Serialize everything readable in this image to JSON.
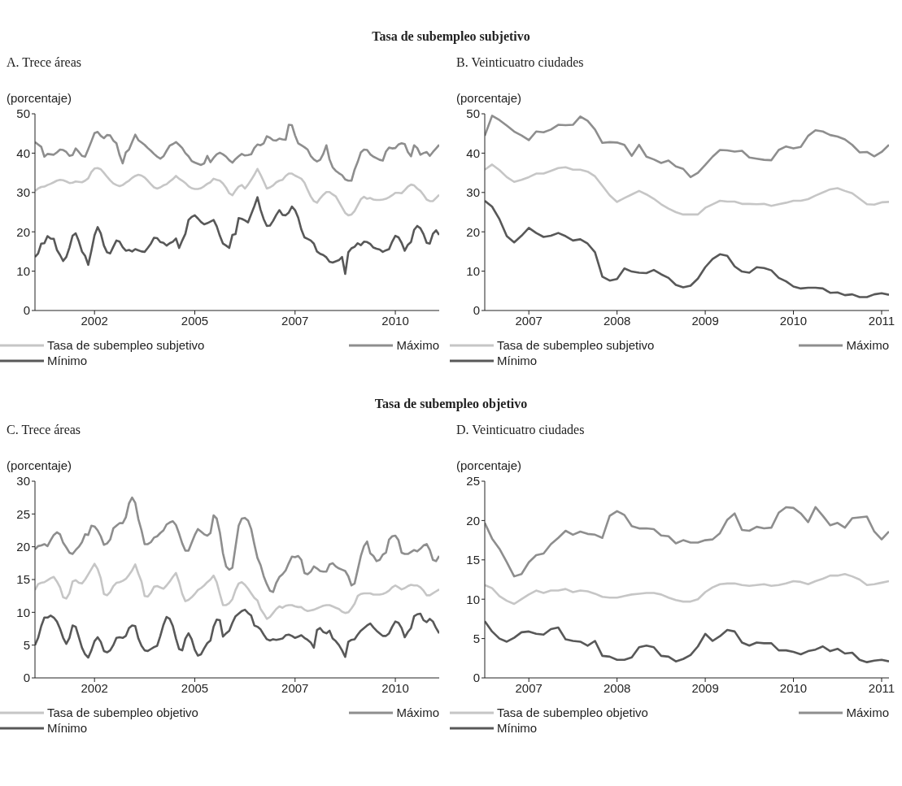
{
  "chart_data": [
    {
      "type": "line",
      "title": "Tasa de subempleo subjetivo",
      "subtitle": "A. Trece áreas",
      "ylabel": "(porcentaje)",
      "ylim": [
        0,
        50
      ],
      "yticks": [
        0,
        10,
        20,
        30,
        40,
        50
      ],
      "legend": "bottom",
      "marker": "none",
      "grid": false,
      "categories": [
        null,
        null,
        null,
        null,
        null,
        null,
        null,
        null,
        null,
        null,
        null,
        null,
        null,
        null,
        null,
        null,
        null,
        null,
        null,
        "2002",
        null,
        null,
        null,
        null,
        null,
        null,
        null,
        null,
        null,
        null,
        null,
        null,
        null,
        null,
        null,
        null,
        null,
        null,
        null,
        null,
        null,
        null,
        null,
        null,
        null,
        null,
        null,
        null,
        null,
        null,
        null,
        "2005",
        null,
        null,
        null,
        null,
        null,
        null,
        null,
        null,
        null,
        null,
        null,
        null,
        null,
        null,
        null,
        null,
        null,
        null,
        null,
        null,
        null,
        null,
        null,
        null,
        null,
        null,
        null,
        null,
        null,
        null,
        null,
        "2007",
        null,
        null,
        null,
        null,
        null,
        null,
        null,
        null,
        null,
        null,
        null,
        null,
        null,
        null,
        null,
        null,
        null,
        null,
        null,
        null,
        null,
        null,
        null,
        null,
        null,
        null,
        null,
        null,
        null,
        null,
        null,
        "2010",
        null,
        null,
        null,
        null,
        null,
        null,
        null,
        null,
        null,
        null,
        null,
        null,
        null,
        null
      ],
      "series": [
        {
          "name": "Tasa de subempleo subjetivo",
          "color": "#c6c6c6",
          "values": [
            30.4,
            31.0,
            31.4,
            31.5,
            31.9,
            32.2,
            32.6,
            33.0,
            33.2,
            33.1,
            32.8,
            32.4,
            32.5,
            32.8,
            32.7,
            32.6,
            33.0,
            33.6,
            35.2,
            36.1,
            36.2,
            35.9,
            35.0,
            34.0,
            33.1,
            32.3,
            31.9,
            31.6,
            31.9,
            32.5,
            33.0,
            33.7,
            34.2,
            34.5,
            34.3,
            33.8,
            33.0,
            32.1,
            31.3,
            31.0,
            31.3,
            31.8,
            32.1,
            32.8,
            33.4,
            34.2,
            33.5,
            33.0,
            32.4,
            31.6,
            31.1,
            30.9,
            30.9,
            31.1,
            31.6,
            32.2,
            32.6,
            33.5,
            33.2,
            33.0,
            32.3,
            31.2,
            29.8,
            29.3,
            30.5,
            31.5,
            31.9,
            31.0,
            32.0,
            33.2,
            34.5,
            36.0,
            34.5,
            32.8,
            31.0,
            31.3,
            31.8,
            32.6,
            33.0,
            33.2,
            34.2,
            34.8,
            34.8,
            34.3,
            33.9,
            33.5,
            32.5,
            30.7,
            29.0,
            27.8,
            27.4,
            28.5,
            29.4,
            30.1,
            30.1,
            29.5,
            29.0,
            27.6,
            26.2,
            24.8,
            24.2,
            24.4,
            25.3,
            26.8,
            28.3,
            28.9,
            28.4,
            28.6,
            28.2,
            28.1,
            28.1,
            28.2,
            28.4,
            28.8,
            29.3,
            29.9,
            29.9,
            29.8,
            30.6,
            31.5,
            32.0,
            31.8,
            31.0,
            30.4,
            29.4,
            28.2,
            27.8,
            27.8,
            28.6,
            29.4
          ]
        },
        {
          "name": "Máximo",
          "color": "#8e8e8e",
          "values": [
            42.8,
            42.2,
            41.6,
            39.1,
            39.8,
            39.7,
            39.6,
            40.2,
            40.9,
            40.8,
            40.3,
            39.3,
            39.5,
            41.2,
            40.3,
            39.3,
            39.1,
            41.0,
            43.0,
            45.1,
            45.4,
            44.4,
            43.8,
            44.6,
            44.5,
            43.2,
            42.5,
            39.5,
            37.4,
            40.2,
            40.9,
            42.8,
            44.7,
            43.3,
            42.7,
            42.1,
            41.3,
            40.6,
            39.8,
            39.1,
            38.6,
            39.2,
            40.6,
            41.9,
            42.3,
            42.8,
            42.1,
            41.3,
            40.0,
            39.2,
            38.0,
            37.6,
            37.3,
            37.0,
            37.4,
            39.3,
            37.7,
            38.8,
            39.7,
            40.1,
            39.7,
            39.1,
            38.2,
            37.6,
            38.5,
            39.2,
            39.8,
            39.4,
            39.5,
            39.7,
            41.3,
            42.2,
            42.0,
            42.5,
            44.3,
            43.9,
            43.3,
            43.2,
            43.7,
            43.5,
            43.4,
            47.2,
            47.1,
            44.5,
            42.5,
            42.0,
            41.5,
            40.9,
            39.3,
            38.4,
            37.9,
            38.3,
            39.8,
            42.0,
            38.4,
            36.4,
            35.5,
            34.9,
            34.4,
            33.3,
            33.0,
            33.0,
            35.8,
            37.8,
            40.2,
            40.9,
            40.8,
            39.7,
            39.1,
            38.7,
            38.3,
            38.1,
            40.4,
            41.4,
            41.2,
            41.3,
            42.2,
            42.5,
            42.3,
            40.3,
            39.2,
            42.0,
            41.3,
            39.6,
            40.0,
            40.3,
            39.3,
            40.3,
            41.2,
            42.1
          ]
        },
        {
          "name": "Mínimo",
          "color": "#585858",
          "values": [
            13.6,
            14.5,
            17.0,
            17.1,
            18.9,
            18.3,
            18.2,
            15.4,
            14.1,
            12.6,
            13.6,
            16.0,
            19.0,
            19.6,
            17.6,
            15.0,
            13.9,
            11.6,
            15.2,
            19.1,
            21.2,
            19.6,
            16.5,
            14.8,
            14.5,
            16.2,
            17.8,
            17.5,
            16.1,
            15.2,
            15.4,
            15.0,
            15.6,
            15.3,
            15.0,
            14.9,
            15.9,
            17.0,
            18.5,
            18.4,
            17.4,
            17.2,
            16.5,
            17.1,
            17.5,
            18.3,
            15.9,
            17.8,
            19.5,
            23.0,
            23.8,
            24.2,
            23.4,
            22.5,
            21.9,
            22.2,
            22.6,
            23.0,
            21.4,
            19.0,
            17.0,
            16.5,
            15.9,
            19.2,
            19.4,
            23.5,
            23.3,
            22.9,
            22.4,
            24.5,
            26.5,
            28.8,
            25.6,
            23.2,
            21.5,
            21.6,
            22.8,
            24.3,
            25.5,
            24.3,
            24.2,
            24.9,
            26.4,
            25.5,
            23.6,
            20.6,
            18.6,
            18.2,
            17.8,
            17.0,
            15.0,
            14.4,
            14.1,
            13.5,
            12.4,
            12.2,
            12.5,
            12.8,
            13.6,
            9.3,
            14.8,
            15.8,
            16.2,
            17.1,
            16.6,
            17.5,
            17.4,
            16.9,
            16.0,
            15.7,
            15.5,
            14.9,
            15.3,
            15.6,
            17.5,
            19.0,
            18.6,
            17.2,
            15.2,
            16.7,
            17.4,
            20.5,
            21.5,
            20.9,
            19.4,
            17.2,
            17.0,
            19.5,
            20.4,
            19.2
          ]
        }
      ]
    },
    {
      "type": "line",
      "subtitle": "B. Veinticuatro ciudades",
      "ylabel": "(porcentaje)",
      "ylim": [
        0,
        50
      ],
      "yticks": [
        0,
        10,
        20,
        30,
        40,
        50
      ],
      "legend": "bottom",
      "marker": "none",
      "grid": false,
      "categories": [
        null,
        null,
        null,
        null,
        null,
        null,
        "2007",
        null,
        null,
        null,
        null,
        null,
        null,
        null,
        null,
        null,
        null,
        null,
        "2008",
        null,
        null,
        null,
        null,
        null,
        null,
        null,
        null,
        null,
        null,
        null,
        "2009",
        null,
        null,
        null,
        null,
        null,
        null,
        null,
        null,
        null,
        null,
        null,
        "2010",
        null,
        null,
        null,
        null,
        null,
        null,
        null,
        null,
        null,
        null,
        null,
        "2011",
        null
      ],
      "series": [
        {
          "name": "Tasa de subempleo subjetivo",
          "color": "#c6c6c6",
          "values": [
            35.8,
            37.1,
            35.7,
            33.9,
            32.7,
            33.2,
            33.9,
            34.8,
            34.8,
            35.5,
            36.2,
            36.4,
            35.8,
            35.8,
            35.3,
            34.1,
            31.7,
            29.3,
            27.6,
            28.6,
            29.5,
            30.4,
            29.5,
            28.4,
            27.0,
            25.9,
            25.0,
            24.4,
            24.4,
            24.4,
            26.1,
            27.0,
            27.9,
            27.7,
            27.7,
            27.1,
            27.1,
            27.0,
            27.1,
            26.6,
            27.0,
            27.4,
            27.9,
            27.9,
            28.3,
            29.2,
            30.0,
            30.8,
            31.1,
            30.4,
            29.8,
            28.4,
            27.0,
            26.9,
            27.5,
            27.6
          ]
        },
        {
          "name": "Máximo",
          "color": "#8e8e8e",
          "values": [
            44.4,
            49.5,
            48.4,
            47.0,
            45.5,
            44.5,
            43.3,
            45.5,
            45.3,
            46.0,
            47.2,
            47.1,
            47.2,
            49.3,
            48.2,
            46.0,
            42.6,
            42.8,
            42.7,
            42.1,
            39.3,
            42.1,
            39.1,
            38.4,
            37.5,
            38.1,
            36.6,
            36.0,
            33.9,
            35.0,
            37.0,
            39.1,
            40.8,
            40.7,
            40.4,
            40.6,
            38.9,
            38.6,
            38.3,
            38.2,
            40.8,
            41.7,
            41.2,
            41.6,
            44.4,
            45.8,
            45.5,
            44.6,
            44.2,
            43.5,
            42.1,
            40.2,
            40.3,
            39.2,
            40.3,
            42.1
          ]
        },
        {
          "name": "Mínimo",
          "color": "#585858",
          "values": [
            27.9,
            26.4,
            23.2,
            18.9,
            17.3,
            19.0,
            21.0,
            19.7,
            18.7,
            19.0,
            19.7,
            18.9,
            17.8,
            18.1,
            17.0,
            14.8,
            8.6,
            7.6,
            8.0,
            10.7,
            9.9,
            9.6,
            9.5,
            10.3,
            9.2,
            8.3,
            6.5,
            5.9,
            6.3,
            8.1,
            11.0,
            13.1,
            14.3,
            13.9,
            11.2,
            9.9,
            9.6,
            11.0,
            10.8,
            10.2,
            8.3,
            7.4,
            6.1,
            5.6,
            5.8,
            5.8,
            5.6,
            4.5,
            4.6,
            3.9,
            4.1,
            3.4,
            3.4,
            4.1,
            4.4,
            4.0
          ]
        }
      ]
    },
    {
      "type": "line",
      "title": "Tasa de subempleo objetivo",
      "subtitle": "C. Trece áreas",
      "ylabel": "(porcentaje)",
      "ylim": [
        0,
        30
      ],
      "yticks": [
        0,
        5,
        10,
        15,
        20,
        25,
        30
      ],
      "legend": "bottom",
      "marker": "none",
      "grid": false,
      "categories": [
        null,
        null,
        null,
        null,
        null,
        null,
        null,
        null,
        null,
        null,
        null,
        null,
        null,
        null,
        null,
        null,
        null,
        null,
        null,
        "2002",
        null,
        null,
        null,
        null,
        null,
        null,
        null,
        null,
        null,
        null,
        null,
        null,
        null,
        null,
        null,
        null,
        null,
        null,
        null,
        null,
        null,
        null,
        null,
        null,
        null,
        null,
        null,
        null,
        null,
        null,
        null,
        "2005",
        null,
        null,
        null,
        null,
        null,
        null,
        null,
        null,
        null,
        null,
        null,
        null,
        null,
        null,
        null,
        null,
        null,
        null,
        null,
        null,
        null,
        null,
        null,
        null,
        null,
        null,
        null,
        null,
        null,
        null,
        null,
        "2007",
        null,
        null,
        null,
        null,
        null,
        null,
        null,
        null,
        null,
        null,
        null,
        null,
        null,
        null,
        null,
        null,
        null,
        null,
        null,
        null,
        null,
        null,
        null,
        null,
        null,
        null,
        null,
        null,
        null,
        null,
        null,
        "2010",
        null,
        null,
        null,
        null,
        null,
        null,
        null,
        null,
        null,
        null,
        null,
        null,
        null,
        null
      ],
      "series": [
        {
          "name": "Tasa de subempleo objetivo",
          "color": "#c6c6c6",
          "values": [
            13.4,
            14.3,
            14.5,
            14.6,
            14.9,
            15.2,
            15.4,
            14.7,
            13.8,
            12.3,
            12.1,
            12.9,
            14.7,
            14.9,
            14.5,
            14.4,
            15.0,
            15.8,
            16.6,
            17.4,
            16.6,
            15.2,
            12.8,
            12.6,
            13.1,
            14.0,
            14.5,
            14.6,
            14.8,
            15.1,
            15.7,
            16.4,
            17.3,
            15.9,
            14.7,
            12.5,
            12.4,
            13.0,
            13.9,
            14.0,
            13.8,
            13.6,
            14.1,
            14.7,
            15.4,
            16.0,
            14.6,
            12.8,
            11.7,
            11.9,
            12.3,
            12.8,
            13.4,
            13.7,
            14.1,
            14.6,
            15.0,
            15.6,
            14.6,
            12.8,
            11.1,
            11.1,
            11.4,
            12.0,
            13.4,
            14.4,
            14.6,
            14.2,
            13.6,
            12.9,
            12.2,
            11.8,
            10.5,
            9.8,
            9.0,
            9.3,
            9.9,
            10.5,
            10.9,
            10.7,
            11.0,
            11.1,
            11.1,
            10.9,
            10.8,
            10.8,
            10.4,
            10.2,
            10.3,
            10.4,
            10.6,
            10.8,
            11.0,
            11.1,
            11.1,
            10.9,
            10.7,
            10.5,
            10.1,
            9.9,
            10.0,
            10.6,
            11.3,
            12.5,
            12.8,
            12.9,
            12.9,
            12.9,
            12.7,
            12.7,
            12.7,
            12.8,
            13.0,
            13.3,
            13.8,
            14.1,
            13.8,
            13.5,
            13.7,
            14.0,
            14.2,
            14.1,
            14.1,
            13.8,
            13.3,
            12.6,
            12.6,
            12.9,
            13.2,
            13.5
          ]
        },
        {
          "name": "Máximo",
          "color": "#8e8e8e",
          "values": [
            19.6,
            20.1,
            20.2,
            20.4,
            20.1,
            21.0,
            21.8,
            22.2,
            21.9,
            20.6,
            19.9,
            19.1,
            18.9,
            19.5,
            20.0,
            20.7,
            21.9,
            21.8,
            23.2,
            23.1,
            22.5,
            21.6,
            20.3,
            20.5,
            21.1,
            22.8,
            23.2,
            23.6,
            23.6,
            24.5,
            26.6,
            27.5,
            26.7,
            24.2,
            22.5,
            20.4,
            20.4,
            20.7,
            21.4,
            21.6,
            22.1,
            22.5,
            23.4,
            23.7,
            23.9,
            23.3,
            22.0,
            20.5,
            19.4,
            19.4,
            20.6,
            21.8,
            22.7,
            22.3,
            21.9,
            21.7,
            22.1,
            24.8,
            24.3,
            22.2,
            19.0,
            17.0,
            16.5,
            16.8,
            20.0,
            23.2,
            24.3,
            24.4,
            24.0,
            22.7,
            20.4,
            18.3,
            17.2,
            15.5,
            14.3,
            13.3,
            13.1,
            14.5,
            15.4,
            15.8,
            16.4,
            17.5,
            18.5,
            18.4,
            18.6,
            18.0,
            16.0,
            15.8,
            16.2,
            17.0,
            16.7,
            16.3,
            16.2,
            16.2,
            17.3,
            17.5,
            17.0,
            16.7,
            16.5,
            16.3,
            15.5,
            14.1,
            14.4,
            16.5,
            18.6,
            20.1,
            20.8,
            19.0,
            18.6,
            17.8,
            18.0,
            18.8,
            19.1,
            21.1,
            21.6,
            21.7,
            21.0,
            19.1,
            18.9,
            18.9,
            19.2,
            19.5,
            19.3,
            19.7,
            20.2,
            20.4,
            19.5,
            18.0,
            17.8,
            18.6
          ]
        },
        {
          "name": "Mínimo",
          "color": "#585858",
          "values": [
            5.0,
            6.1,
            7.9,
            9.2,
            9.2,
            9.5,
            9.2,
            8.6,
            7.5,
            6.1,
            5.2,
            6.1,
            8.0,
            7.8,
            6.2,
            4.6,
            3.6,
            3.1,
            4.2,
            5.6,
            6.2,
            5.5,
            4.1,
            3.9,
            4.2,
            5.0,
            6.1,
            6.2,
            6.1,
            6.4,
            7.6,
            8.0,
            7.9,
            6.0,
            4.9,
            4.2,
            4.1,
            4.4,
            4.7,
            4.9,
            6.4,
            8.1,
            9.3,
            9.0,
            7.9,
            6.0,
            4.4,
            4.2,
            6.0,
            6.8,
            5.9,
            4.3,
            3.4,
            3.6,
            4.5,
            5.3,
            5.7,
            7.8,
            8.9,
            8.8,
            6.3,
            6.8,
            7.2,
            8.4,
            9.4,
            9.8,
            10.2,
            10.4,
            9.9,
            9.5,
            8.0,
            7.8,
            7.4,
            6.6,
            5.9,
            5.7,
            5.9,
            5.8,
            5.9,
            6.0,
            6.5,
            6.6,
            6.4,
            6.1,
            6.3,
            6.5,
            6.1,
            5.8,
            5.4,
            4.6,
            7.3,
            7.6,
            7.0,
            6.8,
            7.2,
            6.0,
            5.6,
            5.0,
            4.2,
            3.2,
            5.5,
            5.8,
            5.9,
            6.6,
            7.2,
            7.6,
            8.0,
            8.3,
            7.7,
            7.2,
            6.8,
            6.4,
            6.4,
            6.8,
            7.8,
            8.6,
            8.4,
            7.6,
            6.2,
            7.0,
            7.6,
            9.4,
            9.7,
            9.8,
            8.8,
            8.5,
            9.0,
            8.6,
            7.6,
            6.8
          ]
        }
      ]
    },
    {
      "type": "line",
      "subtitle": "D. Veinticuatro ciudades",
      "ylabel": "(porcentaje)",
      "ylim": [
        0,
        25
      ],
      "yticks": [
        0,
        5,
        10,
        15,
        20,
        25
      ],
      "legend": "bottom",
      "marker": "none",
      "grid": false,
      "categories": [
        null,
        null,
        null,
        null,
        null,
        null,
        "2007",
        null,
        null,
        null,
        null,
        null,
        null,
        null,
        null,
        null,
        null,
        null,
        "2008",
        null,
        null,
        null,
        null,
        null,
        null,
        null,
        null,
        null,
        null,
        null,
        "2009",
        null,
        null,
        null,
        null,
        null,
        null,
        null,
        null,
        null,
        null,
        null,
        "2010",
        null,
        null,
        null,
        null,
        null,
        null,
        null,
        null,
        null,
        null,
        null,
        "2011",
        null
      ],
      "series": [
        {
          "name": "Tasa de subempleo objetivo",
          "color": "#c6c6c6",
          "values": [
            11.8,
            11.4,
            10.4,
            9.8,
            9.4,
            10.0,
            10.6,
            11.1,
            10.8,
            11.1,
            11.1,
            11.3,
            10.9,
            11.1,
            11.0,
            10.7,
            10.3,
            10.2,
            10.2,
            10.4,
            10.6,
            10.7,
            10.8,
            10.8,
            10.6,
            10.2,
            9.9,
            9.7,
            9.7,
            10.0,
            10.9,
            11.5,
            11.9,
            12.0,
            12.0,
            11.8,
            11.7,
            11.8,
            11.9,
            11.7,
            11.8,
            12.0,
            12.3,
            12.2,
            11.9,
            12.3,
            12.6,
            13.0,
            13.0,
            13.2,
            12.9,
            12.5,
            11.8,
            11.9,
            12.1,
            12.3
          ]
        },
        {
          "name": "Máximo",
          "color": "#8e8e8e",
          "values": [
            19.7,
            17.7,
            16.4,
            14.7,
            12.9,
            13.2,
            14.7,
            15.6,
            15.8,
            17.0,
            17.8,
            18.7,
            18.2,
            18.6,
            18.3,
            18.2,
            17.8,
            20.6,
            21.2,
            20.7,
            19.3,
            19.0,
            19.0,
            18.9,
            18.1,
            18.0,
            17.1,
            17.5,
            17.2,
            17.2,
            17.5,
            17.6,
            18.4,
            20.1,
            20.9,
            18.8,
            18.7,
            19.2,
            19.0,
            19.1,
            21.0,
            21.7,
            21.6,
            20.9,
            19.8,
            21.7,
            20.6,
            19.4,
            19.7,
            19.1,
            20.3,
            20.4,
            20.5,
            18.6,
            17.6,
            18.6
          ]
        },
        {
          "name": "Mínimo",
          "color": "#585858",
          "values": [
            7.2,
            5.9,
            5.0,
            4.6,
            5.1,
            5.8,
            5.9,
            5.6,
            5.5,
            6.2,
            6.4,
            4.9,
            4.7,
            4.6,
            4.1,
            4.7,
            2.8,
            2.7,
            2.3,
            2.3,
            2.6,
            3.9,
            4.1,
            3.9,
            2.8,
            2.7,
            2.1,
            2.4,
            2.9,
            4.0,
            5.6,
            4.7,
            5.3,
            6.1,
            5.9,
            4.5,
            4.1,
            4.5,
            4.4,
            4.4,
            3.5,
            3.5,
            3.3,
            3.0,
            3.4,
            3.6,
            4.0,
            3.4,
            3.7,
            3.1,
            3.2,
            2.3,
            2.0,
            2.2,
            2.3,
            2.1
          ]
        }
      ]
    }
  ]
}
